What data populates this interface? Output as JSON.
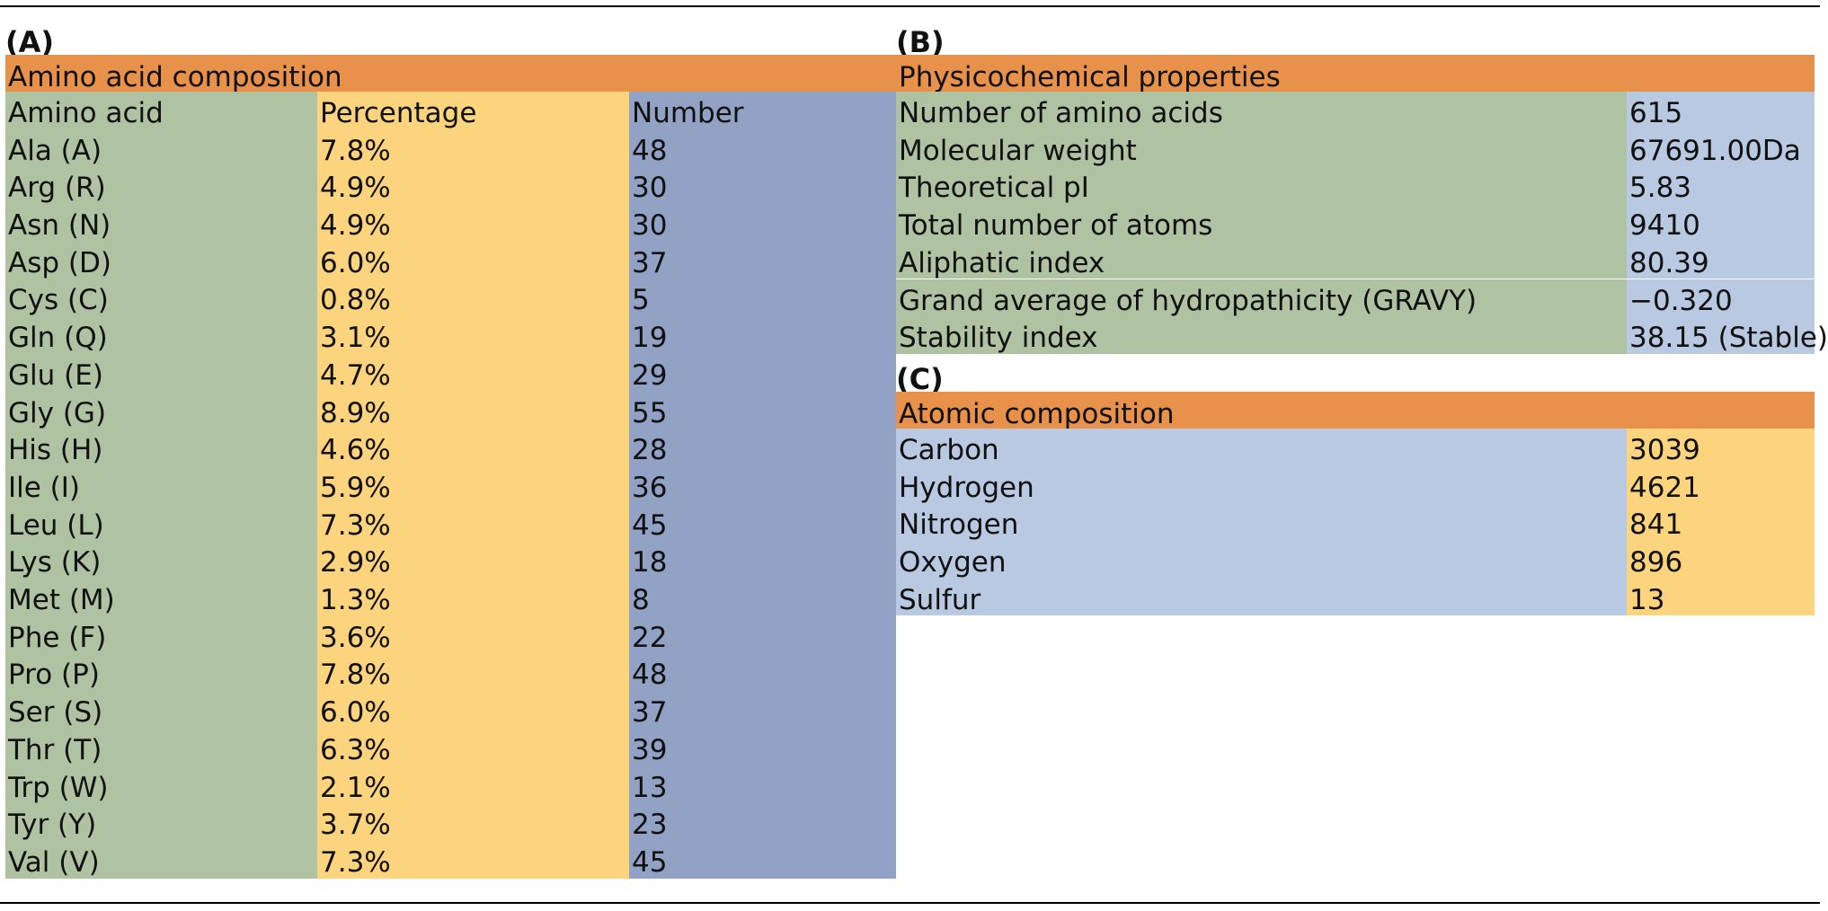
{
  "panelA": {
    "label": "(A)",
    "header": "Amino acid composition",
    "columns": [
      "Amino acid",
      "Percentage",
      "Number"
    ],
    "rows": [
      [
        "Ala (A)",
        "7.8%",
        "48"
      ],
      [
        "Arg (R)",
        "4.9%",
        "30"
      ],
      [
        "Asn (N)",
        "4.9%",
        "30"
      ],
      [
        "Asp (D)",
        "6.0%",
        "37"
      ],
      [
        "Cys (C)",
        "0.8%",
        "5"
      ],
      [
        "Gln (Q)",
        "3.1%",
        "19"
      ],
      [
        "Glu (E)",
        "4.7%",
        "29"
      ],
      [
        "Gly (G)",
        "8.9%",
        "55"
      ],
      [
        "His (H)",
        "4.6%",
        "28"
      ],
      [
        "Ile (I)",
        "5.9%",
        "36"
      ],
      [
        "Leu (L)",
        "7.3%",
        "45"
      ],
      [
        "Lys (K)",
        "2.9%",
        "18"
      ],
      [
        "Met (M)",
        "1.3%",
        "8"
      ],
      [
        "Phe (F)",
        "3.6%",
        "22"
      ],
      [
        "Pro (P)",
        "7.8%",
        "48"
      ],
      [
        "Ser (S)",
        "6.0%",
        "37"
      ],
      [
        "Thr (T)",
        "6.3%",
        "39"
      ],
      [
        "Trp (W)",
        "2.1%",
        "13"
      ],
      [
        "Tyr (Y)",
        "3.7%",
        "23"
      ],
      [
        "Val (V)",
        "7.3%",
        "45"
      ]
    ]
  },
  "panelB": {
    "label": "(B)",
    "header": "Physicochemical properties",
    "rows": [
      [
        "Number of amino acids",
        "615"
      ],
      [
        "Molecular weight",
        "67691.00Da"
      ],
      [
        "Theoretical pI",
        "5.83"
      ],
      [
        "Total number of atoms",
        "9410"
      ],
      [
        "Aliphatic index",
        "80.39"
      ],
      [
        "Grand average of hydropathicity (GRAVY)",
        "−0.320"
      ],
      [
        "Stability index",
        "38.15 (Stable)"
      ]
    ]
  },
  "panelC": {
    "label": "(C)",
    "header": "Atomic composition",
    "rows": [
      [
        "Carbon",
        "3039"
      ],
      [
        "Hydrogen",
        "4621"
      ],
      [
        "Nitrogen",
        "841"
      ],
      [
        "Oxygen",
        "896"
      ],
      [
        "Sulfur",
        "13"
      ]
    ]
  },
  "colors": {
    "header": "#e8914a",
    "green": "#afc3a2",
    "yellow": "#fdd47e",
    "blue": "#92a2c5",
    "lightblue": "#b8c9e1"
  }
}
